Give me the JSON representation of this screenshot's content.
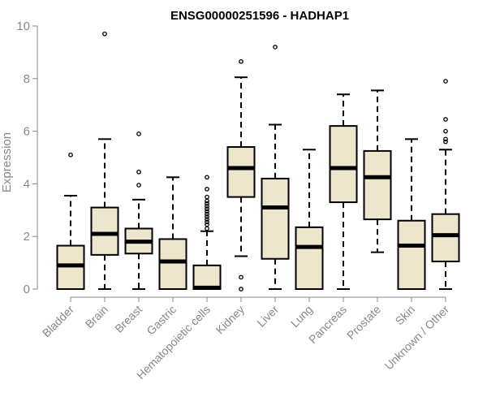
{
  "chart_data": {
    "type": "boxplot",
    "title": "ENSG00000251596 - HADHAP1",
    "xlabel": "",
    "ylabel": "Expression",
    "ylim": [
      0,
      10
    ],
    "yticks": [
      0,
      2,
      4,
      6,
      8,
      10
    ],
    "categories": [
      "Bladder",
      "Brain",
      "Breast",
      "Gastric",
      "Hematopoietic cells",
      "Kidney",
      "Liver",
      "Lung",
      "Pancreas",
      "Prostate",
      "Skin",
      "Unknown / Other"
    ],
    "boxes": [
      {
        "min": 0.0,
        "q1": 0.0,
        "median": 0.9,
        "q3": 1.65,
        "max": 3.55,
        "outliers": [
          5.1
        ]
      },
      {
        "min": 0.0,
        "q1": 1.3,
        "median": 2.1,
        "q3": 3.1,
        "max": 5.7,
        "outliers": [
          9.7
        ]
      },
      {
        "min": 0.0,
        "q1": 1.35,
        "median": 1.8,
        "q3": 2.3,
        "max": 3.4,
        "outliers": [
          3.95,
          4.45,
          5.9
        ]
      },
      {
        "min": 0.0,
        "q1": 0.0,
        "median": 1.05,
        "q3": 1.9,
        "max": 4.25,
        "outliers": []
      },
      {
        "min": 0.0,
        "q1": 0.0,
        "median": 0.05,
        "q3": 0.9,
        "max": 2.2,
        "outliers": [
          2.3,
          2.45,
          2.55,
          2.65,
          2.75,
          2.85,
          2.95,
          3.05,
          3.15,
          3.25,
          3.35,
          3.5,
          3.8,
          4.25
        ]
      },
      {
        "min": 1.25,
        "q1": 3.5,
        "median": 4.6,
        "q3": 5.4,
        "max": 8.05,
        "outliers": [
          0.0,
          0.45,
          8.65
        ]
      },
      {
        "min": 0.0,
        "q1": 1.15,
        "median": 3.1,
        "q3": 4.2,
        "max": 6.25,
        "outliers": [
          9.2
        ]
      },
      {
        "min": 0.0,
        "q1": 0.0,
        "median": 1.6,
        "q3": 2.35,
        "max": 5.3,
        "outliers": []
      },
      {
        "min": 0.0,
        "q1": 3.3,
        "median": 4.6,
        "q3": 6.2,
        "max": 7.4,
        "outliers": []
      },
      {
        "min": 1.4,
        "q1": 2.65,
        "median": 4.25,
        "q3": 5.25,
        "max": 7.55,
        "outliers": []
      },
      {
        "min": 0.0,
        "q1": 0.0,
        "median": 1.65,
        "q3": 2.6,
        "max": 5.7,
        "outliers": []
      },
      {
        "min": 0.0,
        "q1": 1.05,
        "median": 2.05,
        "q3": 2.85,
        "max": 5.3,
        "outliers": [
          5.6,
          5.7,
          6.0,
          6.45,
          7.9
        ]
      }
    ],
    "colors": {
      "box_fill": "#ede6cd",
      "stroke": "#000000",
      "axis": "#888888"
    }
  }
}
